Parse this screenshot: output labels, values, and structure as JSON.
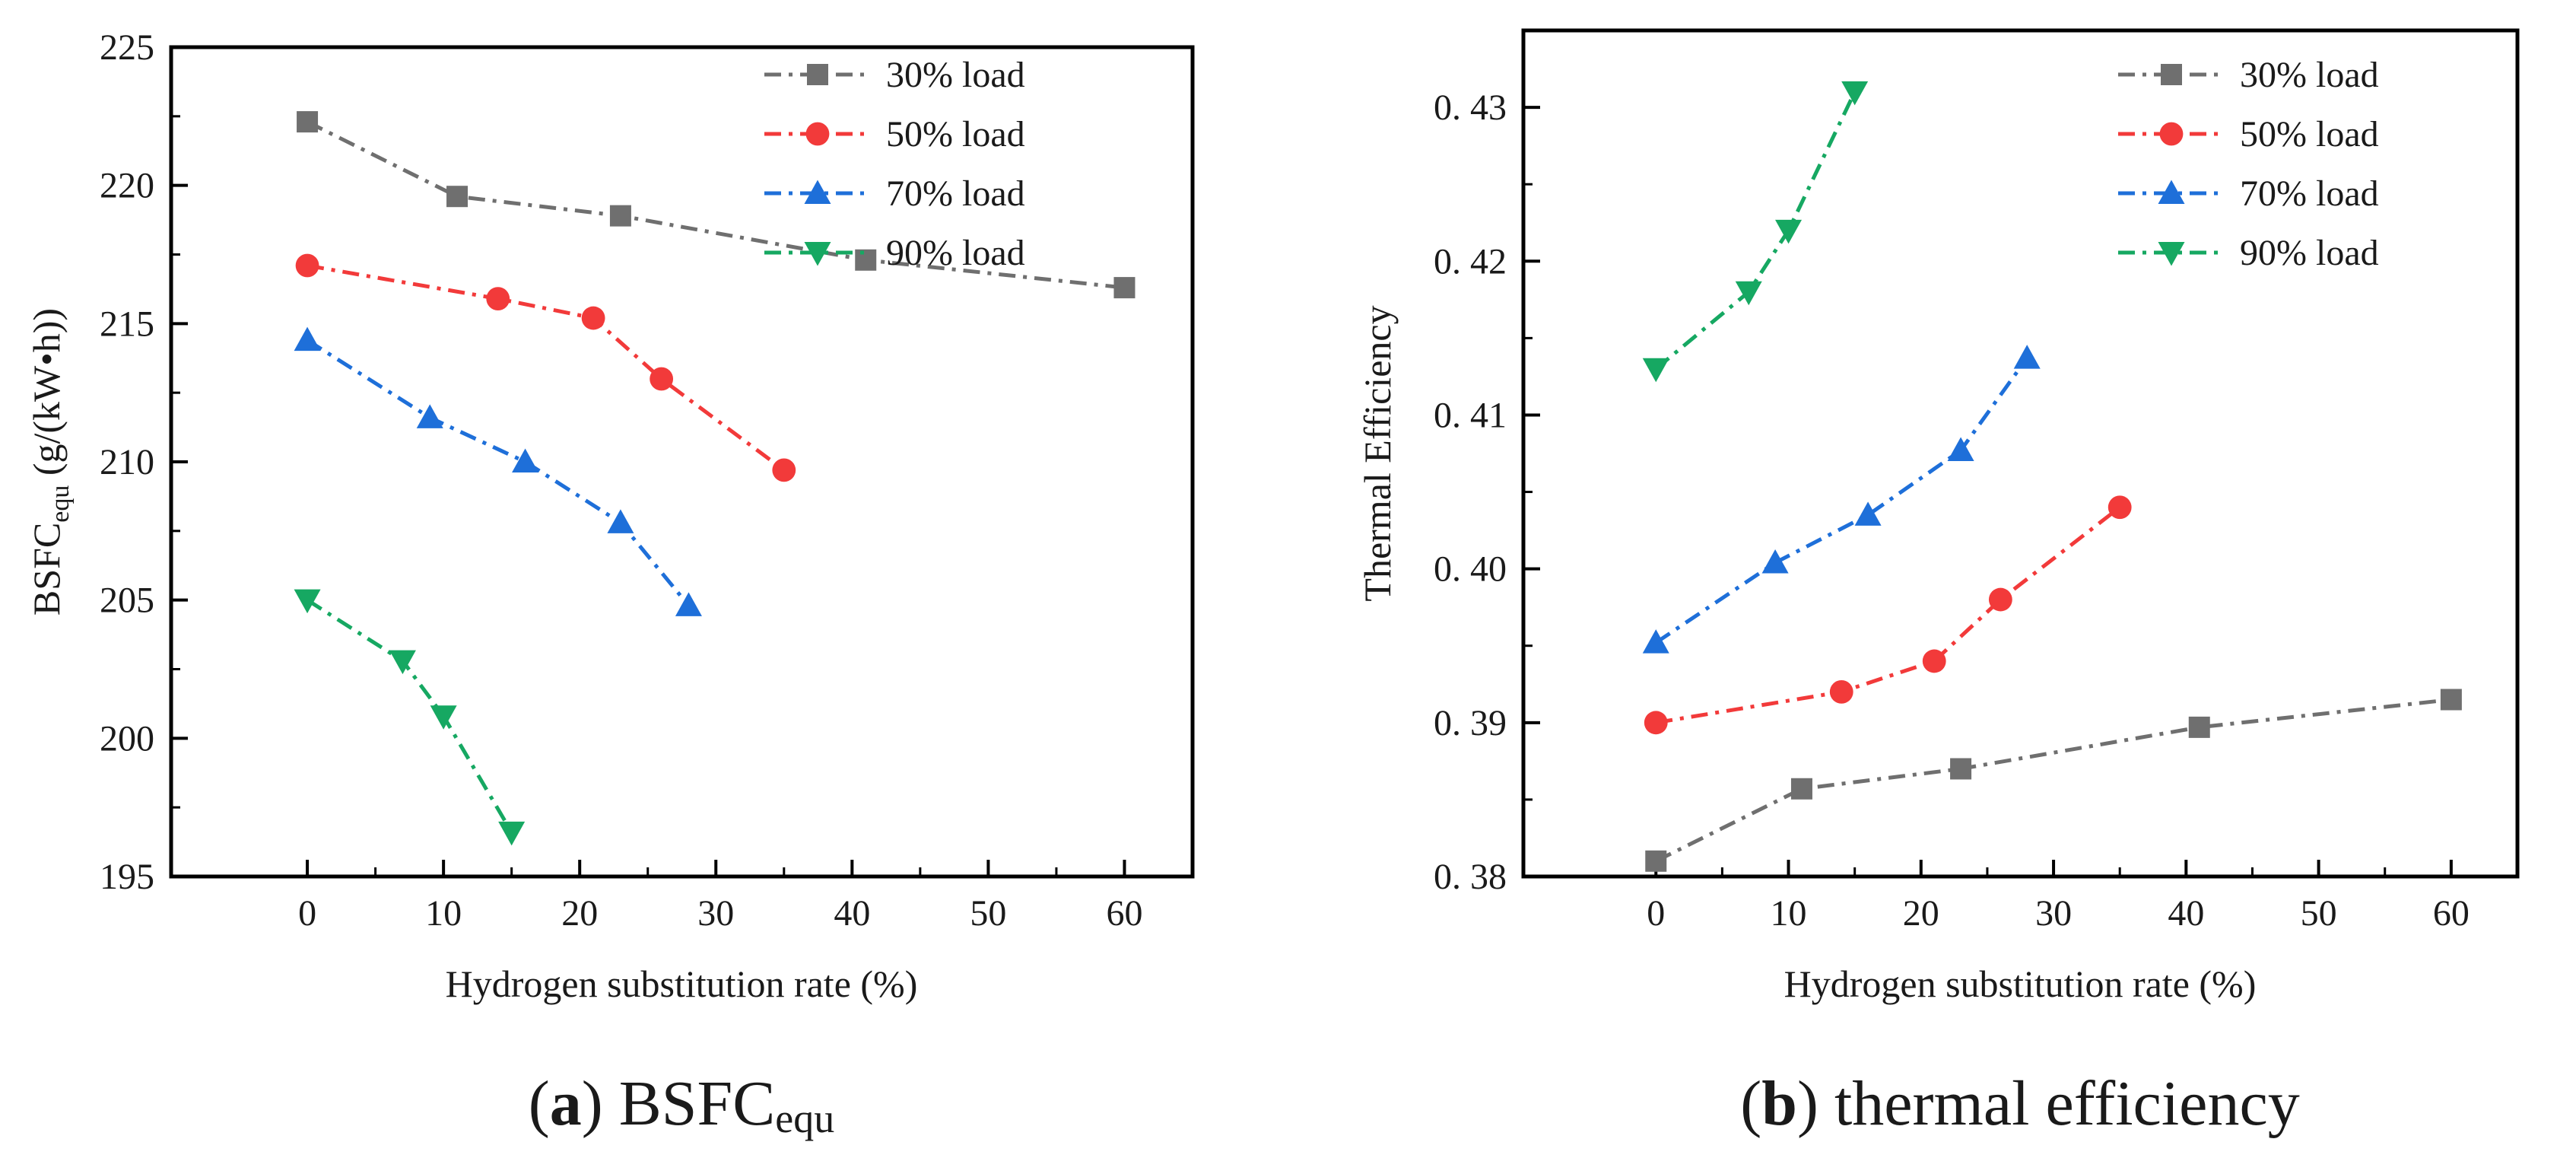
{
  "colors": {
    "30_load": "#6f6f6f",
    "50_load": "#f23a3a",
    "70_load": "#1e6fd9",
    "90_load": "#16a862",
    "axis": "#000000"
  },
  "chart_data": [
    {
      "type": "line",
      "panel": "a",
      "caption": {
        "open": "(",
        "letter": "a",
        "close": ")",
        "text": " BSFC",
        "sub": "equ"
      },
      "xlabel": "Hydrogen substitution rate (%)",
      "ylabel": {
        "main": "BSFC",
        "sub": "equ",
        "units": " (g/(kW•h))"
      },
      "xlim": [
        -10,
        65
      ],
      "ylim": [
        195,
        225
      ],
      "xticks": [
        0,
        10,
        20,
        30,
        40,
        50,
        60
      ],
      "xtick_labels": [
        "0",
        "10",
        "20",
        "30",
        "40",
        "50",
        "60"
      ],
      "yticks": [
        195,
        200,
        205,
        210,
        215,
        220,
        225
      ],
      "ytick_labels": [
        "195",
        "200",
        "205",
        "210",
        "215",
        "220",
        "225"
      ],
      "legend_position": "top-right",
      "series": [
        {
          "name": "30% load",
          "marker": "square",
          "color_key": "30_load",
          "points": [
            [
              0,
              222.3
            ],
            [
              11,
              219.6
            ],
            [
              23,
              218.9
            ],
            [
              41,
              217.3
            ],
            [
              60,
              216.3
            ]
          ]
        },
        {
          "name": "50% load",
          "marker": "circle",
          "color_key": "50_load",
          "points": [
            [
              0,
              217.1
            ],
            [
              14,
              215.9
            ],
            [
              21,
              215.2
            ],
            [
              26,
              213.0
            ],
            [
              35,
              209.7
            ]
          ]
        },
        {
          "name": "70% load",
          "marker": "triangle-up",
          "color_key": "70_load",
          "points": [
            [
              0,
              214.4
            ],
            [
              9,
              211.6
            ],
            [
              16,
              210.0
            ],
            [
              23,
              207.8
            ],
            [
              28,
              204.8
            ]
          ]
        },
        {
          "name": "90% load",
          "marker": "triangle-down",
          "color_key": "90_load",
          "points": [
            [
              0,
              205.0
            ],
            [
              7,
              202.8
            ],
            [
              10,
              200.8
            ],
            [
              15,
              196.6
            ]
          ]
        }
      ]
    },
    {
      "type": "line",
      "panel": "b",
      "caption": {
        "open": "(",
        "letter": "b",
        "close": ")",
        "text": " thermal efficiency",
        "sub": ""
      },
      "xlabel": "Hydrogen substitution rate (%)",
      "ylabel": {
        "main": "Thermal Efficiency",
        "sub": "",
        "units": ""
      },
      "xlim": [
        -10,
        65
      ],
      "ylim": [
        0.38,
        0.435
      ],
      "xticks": [
        0,
        10,
        20,
        30,
        40,
        50,
        60
      ],
      "xtick_labels": [
        "0",
        "10",
        "20",
        "30",
        "40",
        "50",
        "60"
      ],
      "yticks": [
        0.38,
        0.39,
        0.4,
        0.41,
        0.42,
        0.43
      ],
      "ytick_labels": [
        "0. 38",
        "0. 39",
        "0. 40",
        "0. 41",
        "0. 42",
        "0. 43"
      ],
      "legend_position": "top-right",
      "series": [
        {
          "name": "30% load",
          "marker": "square",
          "color_key": "30_load",
          "points": [
            [
              0,
              0.381
            ],
            [
              11,
              0.3857
            ],
            [
              23,
              0.387
            ],
            [
              41,
              0.3897
            ],
            [
              60,
              0.3915
            ]
          ]
        },
        {
          "name": "50% load",
          "marker": "circle",
          "color_key": "50_load",
          "points": [
            [
              0,
              0.39
            ],
            [
              14,
              0.392
            ],
            [
              21,
              0.394
            ],
            [
              26,
              0.398
            ],
            [
              35,
              0.404
            ]
          ]
        },
        {
          "name": "70% load",
          "marker": "triangle-up",
          "color_key": "70_load",
          "points": [
            [
              0,
              0.3952
            ],
            [
              9,
              0.4004
            ],
            [
              16,
              0.4035
            ],
            [
              23,
              0.4077
            ],
            [
              28,
              0.4137
            ]
          ]
        },
        {
          "name": "90% load",
          "marker": "triangle-down",
          "color_key": "90_load",
          "points": [
            [
              0,
              0.413
            ],
            [
              7,
              0.418
            ],
            [
              10,
              0.422
            ],
            [
              15,
              0.431
            ]
          ]
        }
      ]
    }
  ]
}
